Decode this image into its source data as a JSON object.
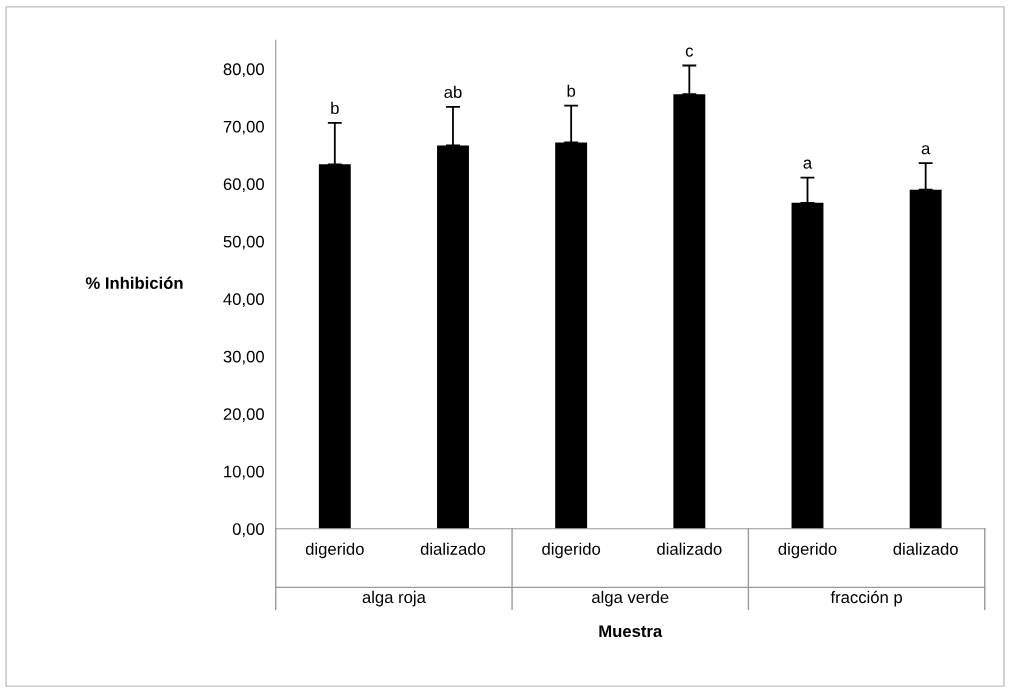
{
  "chart_data": {
    "type": "bar",
    "xlabel": "Muestra",
    "ylabel": "% Inhibición",
    "categories": [
      "digerido",
      "dializado",
      "digerido",
      "dializado",
      "digerido",
      "dializado"
    ],
    "values": [
      63.4,
      66.7,
      67.2,
      75.6,
      56.7,
      59.0
    ],
    "errors": [
      7.2,
      6.7,
      6.4,
      5.0,
      4.4,
      4.6
    ],
    "value_labels": [
      "b",
      "ab",
      "b",
      "c",
      "a",
      "a"
    ],
    "color": "#000000",
    "annotations": [
      "alga roja",
      "alga verde",
      "fracción p"
    ],
    "ylim": [
      0,
      85
    ],
    "yticks": [
      {
        "value": 0,
        "label": "0,00"
      },
      {
        "value": 10,
        "label": "10,00"
      },
      {
        "value": 20,
        "label": "20,00"
      },
      {
        "value": 30,
        "label": "30,00"
      },
      {
        "value": 40,
        "label": "40,00"
      },
      {
        "value": 50,
        "label": "50,00"
      },
      {
        "value": 60,
        "label": "60,00"
      },
      {
        "value": 70,
        "label": "70,00"
      },
      {
        "value": 80,
        "label": "80,00"
      }
    ],
    "grid": false,
    "legend": false
  }
}
